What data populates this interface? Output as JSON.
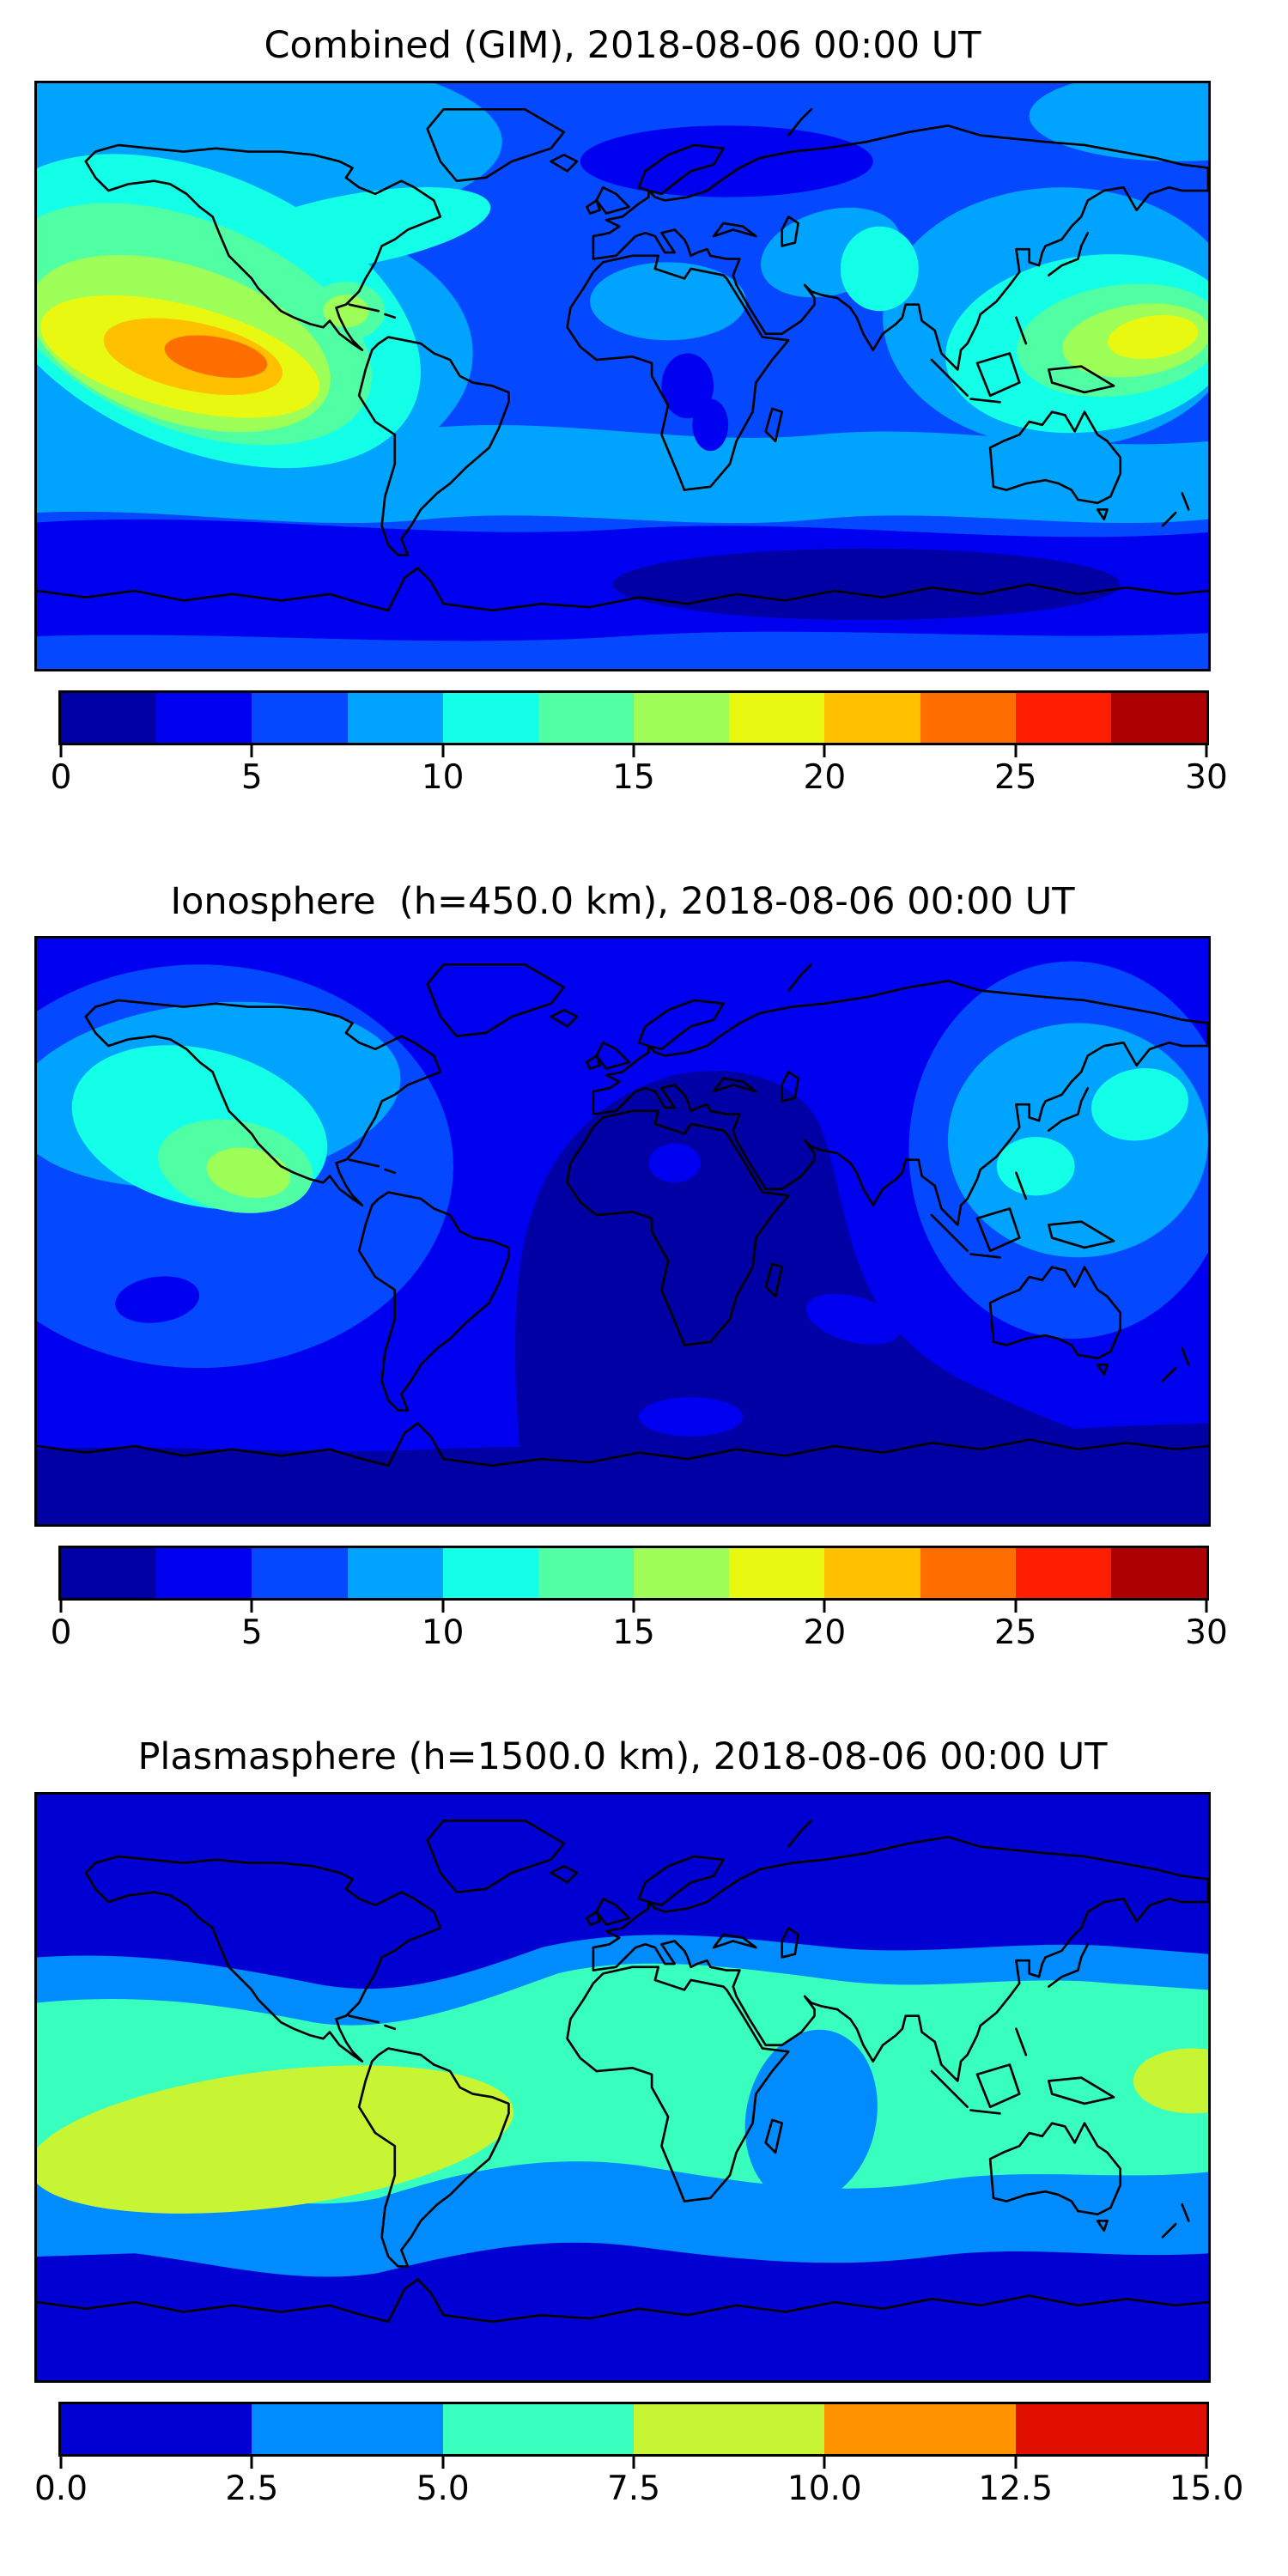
{
  "palettes": {
    "jet12": [
      "#0000a4",
      "#0000f1",
      "#0448ff",
      "#00a4ff",
      "#14ffe8",
      "#50ffa4",
      "#9dff57",
      "#e8f811",
      "#ffc000",
      "#ff6e00",
      "#ff1e00",
      "#ad0000"
    ],
    "jet6": [
      "#0000d2",
      "#008cff",
      "#38ffbe",
      "#c8f533",
      "#ff9400",
      "#e00f00"
    ]
  },
  "figure": {
    "background": "#ffffff",
    "map_border_color": "#000000",
    "coastline_color": "#000000"
  },
  "chart_data": [
    {
      "type": "heatmap",
      "subtype": "filled_contour_world_map",
      "title": "Combined (GIM), 2018-08-06 00:00 UT",
      "projection": "equirectangular",
      "lon_range": [
        -180,
        180
      ],
      "lat_range": [
        -90,
        90
      ],
      "coastlines": true,
      "grid": false,
      "colormap": "jet",
      "palette": "jet12",
      "contour_levels": {
        "min": 0,
        "max": 30,
        "step": 2.5,
        "n_bins": 12
      },
      "colorbar": {
        "orientation": "horizontal",
        "position": "bottom",
        "tick_labels": [
          "0",
          "5",
          "10",
          "15",
          "20",
          "25",
          "30"
        ],
        "tick_values": [
          0,
          5,
          10,
          15,
          20,
          25,
          30
        ]
      },
      "field_summary": [
        {
          "region": "eastern Pacific ~110W 5N",
          "feature": "global maximum (orange core)",
          "approx_value": "25-27.5"
        },
        {
          "region": "western Pacific ~150E 12N",
          "feature": "secondary maximum (yellow)",
          "approx_value": "17.5-20"
        },
        {
          "region": "Scandinavia / Arctic Europe ~35E 65N",
          "feature": "high-latitude low (dark blue oval)",
          "approx_value": "2.5-5"
        },
        {
          "region": "southern ocean 50-75S",
          "feature": "low band",
          "approx_value": "2.5-5"
        },
        {
          "region": "equatorial Africa ~20E",
          "feature": "small local lows",
          "approx_value": "2.5-5"
        },
        {
          "region": "Sahara and Caspian/central Asia",
          "feature": "moderate patches",
          "approx_value": "7.5-10"
        }
      ]
    },
    {
      "type": "heatmap",
      "subtype": "filled_contour_world_map",
      "title": "Ionosphere  (h=450.0 km), 2018-08-06 00:00 UT",
      "projection": "equirectangular",
      "lon_range": [
        -180,
        180
      ],
      "lat_range": [
        -90,
        90
      ],
      "coastlines": true,
      "grid": false,
      "colormap": "jet",
      "palette": "jet12",
      "contour_levels": {
        "min": 0,
        "max": 30,
        "step": 2.5,
        "n_bins": 12
      },
      "colorbar": {
        "orientation": "horizontal",
        "position": "bottom",
        "tick_labels": [
          "0",
          "5",
          "10",
          "15",
          "20",
          "25",
          "30"
        ],
        "tick_values": [
          0,
          5,
          10,
          15,
          20,
          25,
          30
        ]
      },
      "field_summary": [
        {
          "region": "Africa, Europe, Indian Ocean (night side)",
          "feature": "broad deep minimum dome",
          "approx_value": "0-2.5"
        },
        {
          "region": "eastern Pacific ~125W 17N",
          "feature": "maximum (yellow-green core)",
          "approx_value": "15-17.5"
        },
        {
          "region": "North America / north Pacific",
          "feature": "moderate band",
          "approx_value": "7.5-12.5"
        },
        {
          "region": "western Pacific (Philippines, Japan)",
          "feature": "moderate cyan patches",
          "approx_value": "10-12.5"
        },
        {
          "region": "south Pacific ~145W 23S",
          "feature": "local low ellipse",
          "approx_value": "2.5-5"
        },
        {
          "region": "Antarctic band",
          "feature": "low band",
          "approx_value": "0-2.5"
        }
      ]
    },
    {
      "type": "heatmap",
      "subtype": "filled_contour_world_map",
      "title": "Plasmasphere (h=1500.0 km), 2018-08-06 00:00 UT",
      "projection": "equirectangular",
      "lon_range": [
        -180,
        180
      ],
      "lat_range": [
        -90,
        90
      ],
      "coastlines": true,
      "grid": false,
      "colormap": "jet",
      "palette": "jet6",
      "contour_levels": {
        "min": 0,
        "max": 15,
        "step": 2.5,
        "n_bins": 6
      },
      "colorbar": {
        "orientation": "horizontal",
        "position": "bottom",
        "tick_labels": [
          "0.0",
          "2.5",
          "5.0",
          "7.5",
          "10.0",
          "12.5",
          "15.0"
        ],
        "tick_values": [
          0,
          2.5,
          5,
          7.5,
          10,
          12.5,
          15
        ]
      },
      "field_summary": [
        {
          "region": "South America / southeast Pacific ~90W 15S",
          "feature": "maximum (yellow-green blob)",
          "approx_value": "7.5-10"
        },
        {
          "region": "western Pacific ~170E equator",
          "feature": "secondary enhancement",
          "approx_value": "7.5-10"
        },
        {
          "region": "equatorial belt within ~33 deg",
          "feature": "enhanced turquoise band",
          "approx_value": "5-7.5"
        },
        {
          "region": "west Indian Ocean / Arabian Sea",
          "feature": "local depletion",
          "approx_value": "2.5-5"
        },
        {
          "region": "high latitudes poleward of ~50 deg",
          "feature": "minimum bands",
          "approx_value": "0-2.5"
        }
      ]
    }
  ]
}
